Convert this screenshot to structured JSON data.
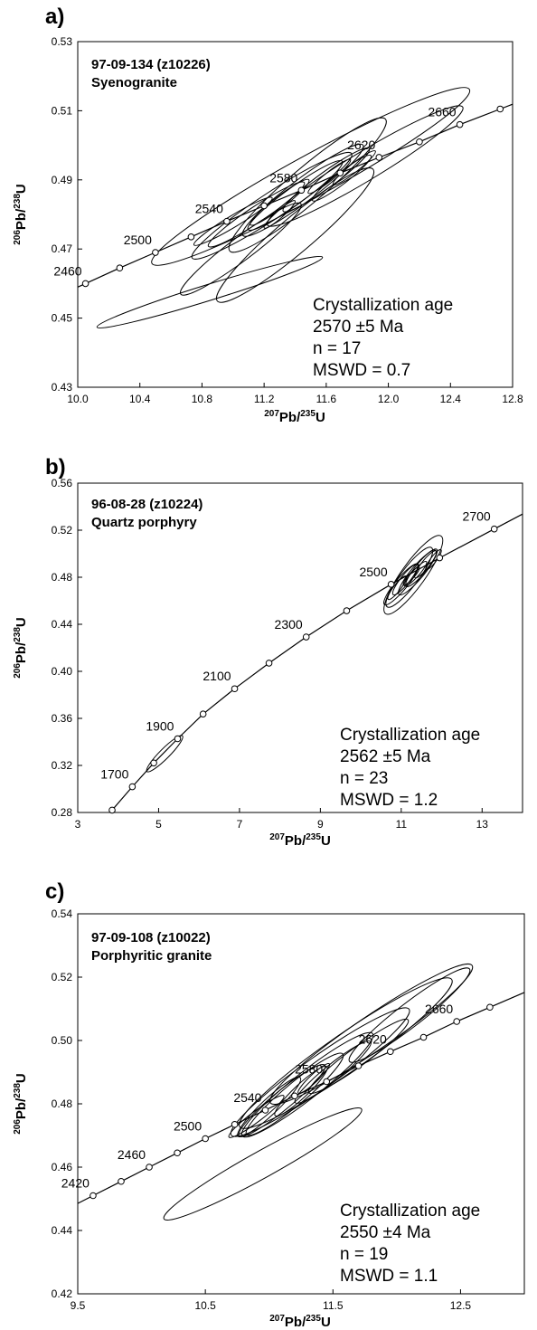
{
  "chart_data": [
    {
      "type": "scatter",
      "panel_label": "a)",
      "sample_id": "97-09-134 (z10226)",
      "rock_type": "Syenogranite",
      "xlabel": "207Pb/235U",
      "ylabel": "206Pb/238U",
      "xlim": [
        10.0,
        12.8
      ],
      "ylim": [
        0.43,
        0.53
      ],
      "x_ticks": [
        "10.0",
        "10.4",
        "10.8",
        "11.2",
        "11.6",
        "12.0",
        "12.4",
        "12.8"
      ],
      "y_ticks": [
        "0.43",
        "0.45",
        "0.47",
        "0.49",
        "0.51",
        "0.53"
      ],
      "concordia_points": [
        {
          "age": "2460",
          "x": 10.05,
          "y": 0.46,
          "labeled": true
        },
        {
          "age": "2480",
          "x": 10.27,
          "y": 0.4645,
          "labeled": false
        },
        {
          "age": "2500",
          "x": 10.5,
          "y": 0.469,
          "labeled": true
        },
        {
          "age": "2520",
          "x": 10.73,
          "y": 0.4735,
          "labeled": false
        },
        {
          "age": "2540",
          "x": 10.96,
          "y": 0.478,
          "labeled": true
        },
        {
          "age": "2560",
          "x": 11.2,
          "y": 0.4825,
          "labeled": false
        },
        {
          "age": "2580",
          "x": 11.44,
          "y": 0.487,
          "labeled": true
        },
        {
          "age": "2600",
          "x": 11.69,
          "y": 0.492,
          "labeled": false
        },
        {
          "age": "2620",
          "x": 11.94,
          "y": 0.4965,
          "labeled": true
        },
        {
          "age": "2640",
          "x": 12.2,
          "y": 0.501,
          "labeled": false
        },
        {
          "age": "2660",
          "x": 12.46,
          "y": 0.506,
          "labeled": true
        },
        {
          "age": "2680",
          "x": 12.72,
          "y": 0.5105,
          "labeled": false
        }
      ],
      "concordia_x_range": [
        10.0,
        12.8
      ],
      "error_ellipses": [
        {
          "cx": 11.5,
          "cy": 0.491,
          "rx": 1.12,
          "ry": 0.0145
        },
        {
          "cx": 11.48,
          "cy": 0.4885,
          "rx": 0.6,
          "ry": 0.012
        },
        {
          "cx": 11.45,
          "cy": 0.487,
          "rx": 0.45,
          "ry": 0.008
        },
        {
          "cx": 11.4,
          "cy": 0.4855,
          "rx": 0.35,
          "ry": 0.006
        },
        {
          "cx": 11.6,
          "cy": 0.49,
          "rx": 0.32,
          "ry": 0.0055
        },
        {
          "cx": 11.7,
          "cy": 0.4905,
          "rx": 0.22,
          "ry": 0.004
        },
        {
          "cx": 11.25,
          "cy": 0.4825,
          "rx": 0.58,
          "ry": 0.009
        },
        {
          "cx": 11.15,
          "cy": 0.48,
          "rx": 0.35,
          "ry": 0.0055
        },
        {
          "cx": 11.3,
          "cy": 0.4835,
          "rx": 0.22,
          "ry": 0.004
        },
        {
          "cx": 11.0,
          "cy": 0.478,
          "rx": 0.28,
          "ry": 0.004
        },
        {
          "cx": 11.78,
          "cy": 0.4935,
          "rx": 0.16,
          "ry": 0.003
        },
        {
          "cx": 11.62,
          "cy": 0.491,
          "rx": 0.16,
          "ry": 0.003
        },
        {
          "cx": 11.85,
          "cy": 0.494,
          "rx": 0.7,
          "ry": 0.01
        },
        {
          "cx": 11.4,
          "cy": 0.474,
          "rx": 0.6,
          "ry": 0.012
        },
        {
          "cx": 11.05,
          "cy": 0.47,
          "rx": 0.45,
          "ry": 0.008
        },
        {
          "cx": 10.85,
          "cy": 0.4575,
          "rx": 0.75,
          "ry": 0.0055
        },
        {
          "cx": 11.3,
          "cy": 0.48,
          "rx": 0.12,
          "ry": 0.0025
        }
      ],
      "stats": [
        "Crystallization age",
        "2570 ±5 Ma",
        "n = 17",
        "MSWD = 0.7"
      ]
    },
    {
      "type": "scatter",
      "panel_label": "b)",
      "sample_id": "96-08-28 (z10224)",
      "rock_type": "Quartz porphyry",
      "xlabel": "207Pb/235U",
      "ylabel": "206Pb/238U",
      "xlim": [
        3,
        14
      ],
      "ylim": [
        0.28,
        0.56
      ],
      "x_ticks": [
        "3",
        "5",
        "7",
        "9",
        "11",
        "13"
      ],
      "y_ticks": [
        "0.28",
        "0.32",
        "0.36",
        "0.40",
        "0.44",
        "0.48",
        "0.52",
        "0.56"
      ],
      "concordia_points": [
        {
          "age": "1600",
          "x": 3.85,
          "y": 0.282,
          "labeled": false
        },
        {
          "age": "1700",
          "x": 4.35,
          "y": 0.3019,
          "labeled": true
        },
        {
          "age": "1800",
          "x": 4.88,
          "y": 0.3221,
          "labeled": false
        },
        {
          "age": "1900",
          "x": 5.47,
          "y": 0.3427,
          "labeled": true
        },
        {
          "age": "2000",
          "x": 6.1,
          "y": 0.3637,
          "labeled": false
        },
        {
          "age": "2100",
          "x": 6.88,
          "y": 0.3852,
          "labeled": true
        },
        {
          "age": "2200",
          "x": 7.73,
          "y": 0.407,
          "labeled": false
        },
        {
          "age": "2300",
          "x": 8.65,
          "y": 0.4292,
          "labeled": true
        },
        {
          "age": "2400",
          "x": 9.65,
          "y": 0.4515,
          "labeled": false
        },
        {
          "age": "2500",
          "x": 10.75,
          "y": 0.474,
          "labeled": true
        },
        {
          "age": "2600",
          "x": 11.95,
          "y": 0.4965,
          "labeled": false
        },
        {
          "age": "2700",
          "x": 13.3,
          "y": 0.521,
          "labeled": true
        }
      ],
      "concordia_x_range": [
        3.85,
        14
      ],
      "error_ellipses": [
        {
          "cx": 11.3,
          "cy": 0.482,
          "rx": 0.95,
          "ry": 0.024
        },
        {
          "cx": 11.2,
          "cy": 0.48,
          "rx": 0.75,
          "ry": 0.018
        },
        {
          "cx": 11.4,
          "cy": 0.484,
          "rx": 0.6,
          "ry": 0.013
        },
        {
          "cx": 11.0,
          "cy": 0.474,
          "rx": 0.55,
          "ry": 0.012
        },
        {
          "cx": 11.5,
          "cy": 0.488,
          "rx": 0.5,
          "ry": 0.011
        },
        {
          "cx": 11.1,
          "cy": 0.478,
          "rx": 0.4,
          "ry": 0.009
        },
        {
          "cx": 11.35,
          "cy": 0.483,
          "rx": 0.35,
          "ry": 0.007
        },
        {
          "cx": 11.6,
          "cy": 0.491,
          "rx": 0.35,
          "ry": 0.008
        },
        {
          "cx": 10.9,
          "cy": 0.471,
          "rx": 0.3,
          "ry": 0.007
        },
        {
          "cx": 11.25,
          "cy": 0.481,
          "rx": 0.25,
          "ry": 0.005
        },
        {
          "cx": 11.8,
          "cy": 0.495,
          "rx": 0.25,
          "ry": 0.006
        },
        {
          "cx": 5.15,
          "cy": 0.33,
          "rx": 0.55,
          "ry": 0.01
        }
      ],
      "stats": [
        "Crystallization age",
        "2562 ±5 Ma",
        "n = 23",
        "MSWD = 1.2"
      ]
    },
    {
      "type": "scatter",
      "panel_label": "c)",
      "sample_id": "97-09-108 (z10022)",
      "rock_type": "Porphyritic granite",
      "xlabel": "207Pb/235U",
      "ylabel": "206Pb/238U",
      "xlim": [
        9.5,
        13.0
      ],
      "ylim": [
        0.42,
        0.54
      ],
      "x_ticks": [
        "9.5",
        "10.5",
        "11.5",
        "12.5"
      ],
      "y_ticks": [
        "0.42",
        "0.44",
        "0.46",
        "0.48",
        "0.50",
        "0.52",
        "0.54"
      ],
      "concordia_points": [
        {
          "age": "2420",
          "x": 9.62,
          "y": 0.451,
          "labeled": true
        },
        {
          "age": "2440",
          "x": 9.84,
          "y": 0.4555,
          "labeled": false
        },
        {
          "age": "2460",
          "x": 10.06,
          "y": 0.46,
          "labeled": true
        },
        {
          "age": "2480",
          "x": 10.28,
          "y": 0.4645,
          "labeled": false
        },
        {
          "age": "2500",
          "x": 10.5,
          "y": 0.469,
          "labeled": true
        },
        {
          "age": "2520",
          "x": 10.73,
          "y": 0.4735,
          "labeled": false
        },
        {
          "age": "2540",
          "x": 10.97,
          "y": 0.478,
          "labeled": true
        },
        {
          "age": "2560",
          "x": 11.2,
          "y": 0.4825,
          "labeled": false
        },
        {
          "age": "2580",
          "x": 11.45,
          "y": 0.487,
          "labeled": true
        },
        {
          "age": "2600",
          "x": 11.7,
          "y": 0.492,
          "labeled": false
        },
        {
          "age": "2620",
          "x": 11.95,
          "y": 0.4965,
          "labeled": true
        },
        {
          "age": "2640",
          "x": 12.21,
          "y": 0.501,
          "labeled": false
        },
        {
          "age": "2660",
          "x": 12.47,
          "y": 0.506,
          "labeled": true
        },
        {
          "age": "2680",
          "x": 12.73,
          "y": 0.5105,
          "labeled": false
        }
      ],
      "concordia_x_range": [
        9.5,
        13.0
      ],
      "error_ellipses": [
        {
          "cx": 11.8,
          "cy": 0.502,
          "rx": 0.9,
          "ry": 0.013
        },
        {
          "cx": 11.6,
          "cy": 0.496,
          "rx": 0.95,
          "ry": 0.014
        },
        {
          "cx": 11.4,
          "cy": 0.49,
          "rx": 0.8,
          "ry": 0.012
        },
        {
          "cx": 11.3,
          "cy": 0.486,
          "rx": 0.6,
          "ry": 0.01
        },
        {
          "cx": 11.2,
          "cy": 0.483,
          "rx": 0.45,
          "ry": 0.008
        },
        {
          "cx": 11.1,
          "cy": 0.481,
          "rx": 0.4,
          "ry": 0.007
        },
        {
          "cx": 11.0,
          "cy": 0.479,
          "rx": 0.3,
          "ry": 0.006
        },
        {
          "cx": 11.25,
          "cy": 0.484,
          "rx": 0.25,
          "ry": 0.005
        },
        {
          "cx": 11.5,
          "cy": 0.49,
          "rx": 0.35,
          "ry": 0.006
        },
        {
          "cx": 11.7,
          "cy": 0.495,
          "rx": 0.45,
          "ry": 0.007
        },
        {
          "cx": 12.1,
          "cy": 0.508,
          "rx": 0.55,
          "ry": 0.009
        },
        {
          "cx": 10.95,
          "cy": 0.461,
          "rx": 0.85,
          "ry": 0.01
        },
        {
          "cx": 11.35,
          "cy": 0.488,
          "rx": 0.15,
          "ry": 0.003
        },
        {
          "cx": 10.9,
          "cy": 0.476,
          "rx": 0.25,
          "ry": 0.004
        }
      ],
      "stats": [
        "Crystallization age",
        "2550 ±4 Ma",
        "n = 19",
        "MSWD = 1.1"
      ]
    }
  ]
}
